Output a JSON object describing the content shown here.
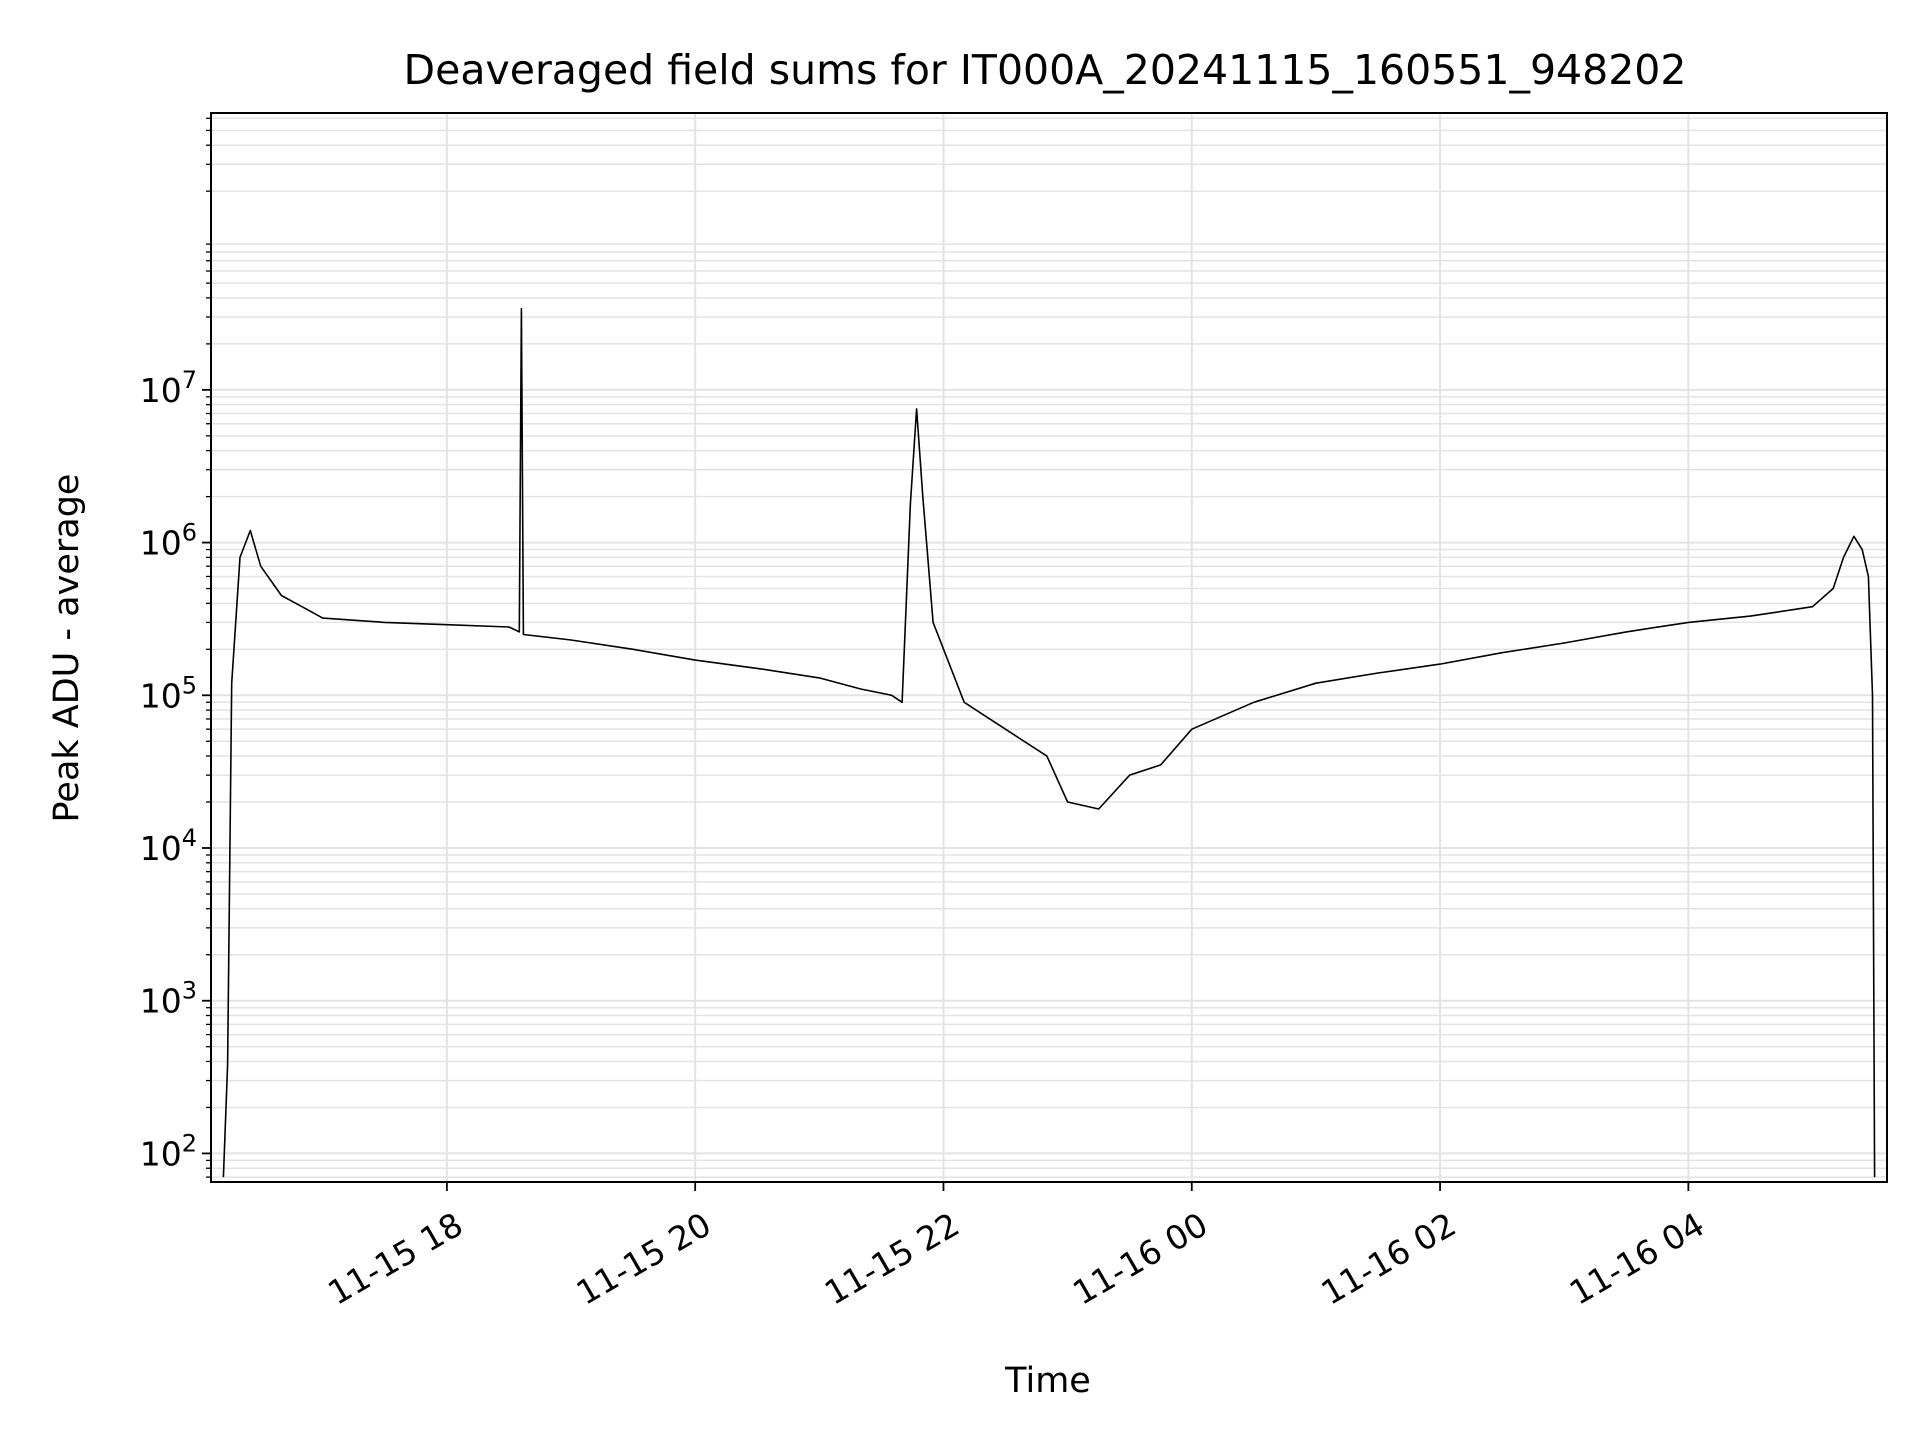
{
  "chart_data": {
    "type": "line",
    "title": "Deaveraged field sums for IT000A_20241115_160551_948202",
    "xlabel": "Time",
    "ylabel": "Peak ADU - average",
    "yscale": "log",
    "ylim": [
      65,
      650000000
    ],
    "xlim": [
      "2024-11-15T16:06:00",
      "2024-11-16T05:36:00"
    ],
    "x_ticks": [
      {
        "t": "2024-11-15T18:00:00",
        "label": "11-15 18"
      },
      {
        "t": "2024-11-15T20:00:00",
        "label": "11-15 20"
      },
      {
        "t": "2024-11-15T22:00:00",
        "label": "11-15 22"
      },
      {
        "t": "2024-11-16T00:00:00",
        "label": "11-16 00"
      },
      {
        "t": "2024-11-16T02:00:00",
        "label": "11-16 02"
      },
      {
        "t": "2024-11-16T04:00:00",
        "label": "11-16 04"
      }
    ],
    "y_ticks": [
      {
        "value": 100,
        "base": "10",
        "exp": "2"
      },
      {
        "value": 1000,
        "base": "10",
        "exp": "3"
      },
      {
        "value": 10000,
        "base": "10",
        "exp": "4"
      },
      {
        "value": 100000,
        "base": "10",
        "exp": "5"
      },
      {
        "value": 1000000,
        "base": "10",
        "exp": "6"
      },
      {
        "value": 10000000,
        "base": "10",
        "exp": "7"
      }
    ],
    "grid": true,
    "line_color": "#000000",
    "grid_color": "#e3e3e3",
    "series": [
      {
        "x": [
          "2024-11-15T16:12:00",
          "2024-11-15T16:14:00",
          "2024-11-15T16:16:00",
          "2024-11-15T16:20:00",
          "2024-11-15T16:25:00",
          "2024-11-15T16:30:00",
          "2024-11-15T16:40:00",
          "2024-11-15T16:50:00",
          "2024-11-15T17:00:00",
          "2024-11-15T17:30:00",
          "2024-11-15T18:00:00",
          "2024-11-15T18:30:00",
          "2024-11-15T18:35:00",
          "2024-11-15T18:36:00",
          "2024-11-15T18:37:00",
          "2024-11-15T19:00:00",
          "2024-11-15T19:30:00",
          "2024-11-15T20:00:00",
          "2024-11-15T20:30:00",
          "2024-11-15T21:00:00",
          "2024-11-15T21:20:00",
          "2024-11-15T21:35:00",
          "2024-11-15T21:40:00",
          "2024-11-15T21:44:00",
          "2024-11-15T21:47:00",
          "2024-11-15T21:50:00",
          "2024-11-15T21:55:00",
          "2024-11-15T22:10:00",
          "2024-11-15T22:30:00",
          "2024-11-15T22:50:00",
          "2024-11-15T23:00:00",
          "2024-11-15T23:15:00",
          "2024-11-15T23:30:00",
          "2024-11-15T23:45:00",
          "2024-11-16T00:00:00",
          "2024-11-16T00:30:00",
          "2024-11-16T01:00:00",
          "2024-11-16T01:30:00",
          "2024-11-16T02:00:00",
          "2024-11-16T02:30:00",
          "2024-11-16T03:00:00",
          "2024-11-16T03:30:00",
          "2024-11-16T04:00:00",
          "2024-11-16T04:30:00",
          "2024-11-16T05:00:00",
          "2024-11-16T05:10:00",
          "2024-11-16T05:15:00",
          "2024-11-16T05:20:00",
          "2024-11-16T05:24:00",
          "2024-11-16T05:27:00",
          "2024-11-16T05:29:00",
          "2024-11-16T05:30:00"
        ],
        "y": [
          70,
          380,
          120000,
          800000,
          1200000,
          700000,
          450000,
          380000,
          320000,
          300000,
          290000,
          280000,
          260000,
          34000000,
          250000,
          230000,
          200000,
          170000,
          150000,
          130000,
          110000,
          100000,
          90000,
          1800000,
          7500000,
          2000000,
          300000,
          90000,
          60000,
          40000,
          20000,
          18000,
          30000,
          35000,
          60000,
          90000,
          120000,
          140000,
          160000,
          190000,
          220000,
          260000,
          300000,
          330000,
          380000,
          500000,
          800000,
          1100000,
          900000,
          600000,
          100000,
          70
        ]
      }
    ]
  }
}
